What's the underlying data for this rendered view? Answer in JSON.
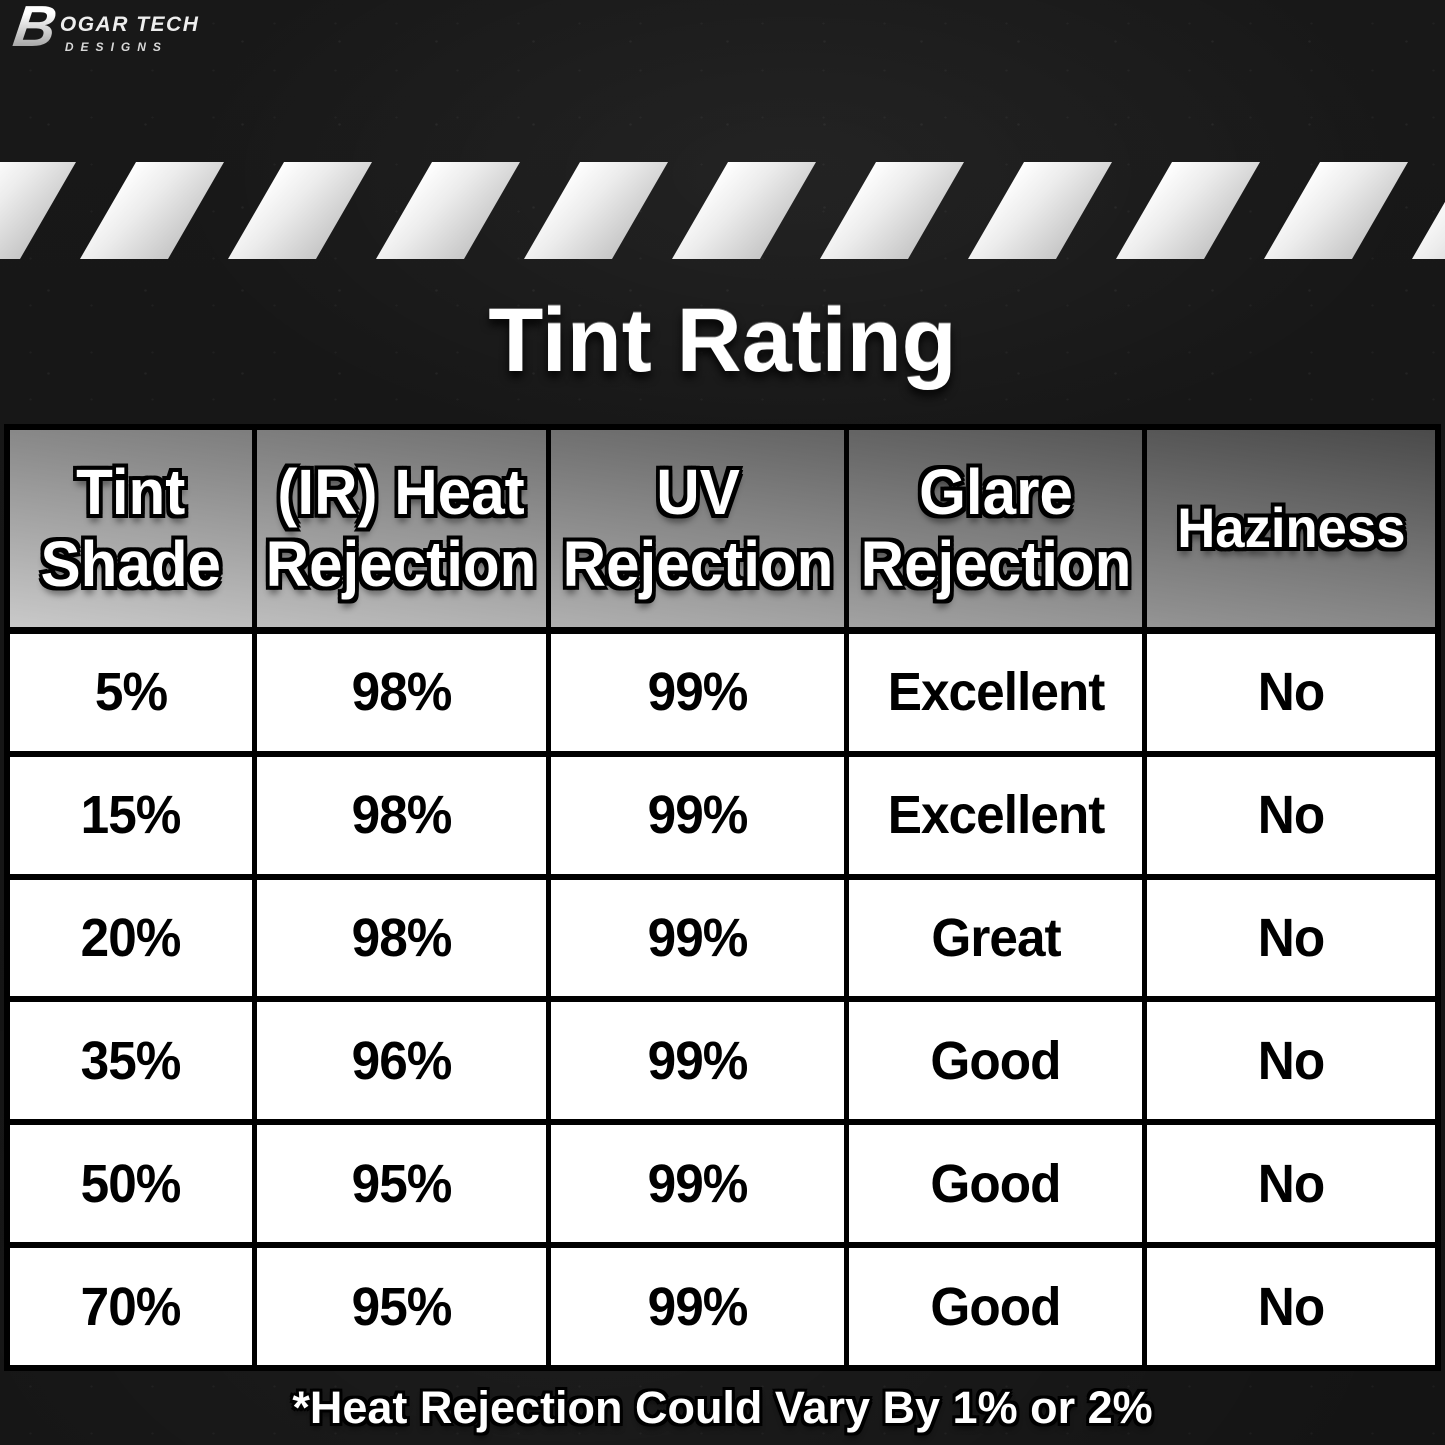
{
  "logo": {
    "mark": "B",
    "line1": "OGAR TECH",
    "line2": "DESIGNS"
  },
  "title": "Tint Rating",
  "chart_data": {
    "type": "table",
    "title": "Tint Rating",
    "columns": [
      "Tint Shade",
      "(IR) Heat Rejection",
      "UV Rejection",
      "Glare Rejection",
      "Haziness"
    ],
    "rows": [
      [
        "5%",
        "98%",
        "99%",
        "Excellent",
        "No"
      ],
      [
        "15%",
        "98%",
        "99%",
        "Excellent",
        "No"
      ],
      [
        "20%",
        "98%",
        "99%",
        "Great",
        "No"
      ],
      [
        "35%",
        "96%",
        "99%",
        "Good",
        "No"
      ],
      [
        "50%",
        "95%",
        "99%",
        "Good",
        "No"
      ],
      [
        "70%",
        "95%",
        "99%",
        "Good",
        "No"
      ]
    ],
    "footnote": "*Heat Rejection Could Vary By 1% or 2%"
  },
  "colors": {
    "background": "#161616",
    "stripe_light": "#ffffff",
    "stripe_dark": "#c6c6c6",
    "header_gradient_light": "#c9c9c9",
    "header_gradient_dark": "#4a4a4a",
    "table_border": "#000000",
    "row_background": "#ffffff",
    "text_light": "#ffffff",
    "text_dark": "#000000"
  }
}
